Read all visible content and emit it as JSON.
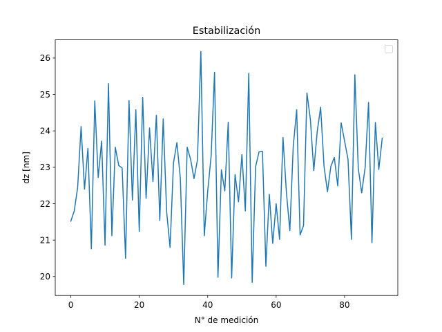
{
  "chart_data": {
    "type": "line",
    "title": "Estabilización",
    "xlabel": "N° de medición",
    "ylabel": "dz [nm]",
    "xlim": [
      -4.55,
      95.55
    ],
    "ylim": [
      19.48,
      26.5
    ],
    "xticks": [
      0,
      20,
      40,
      60,
      80
    ],
    "yticks": [
      20,
      21,
      22,
      23,
      24,
      25,
      26
    ],
    "grid": false,
    "legend": {
      "placement": "top-right",
      "entries": []
    },
    "series": [
      {
        "color": "#1f77b4",
        "x": [
          0,
          1,
          2,
          3,
          4,
          5,
          6,
          7,
          8,
          9,
          10,
          11,
          12,
          13,
          14,
          15,
          16,
          17,
          18,
          19,
          20,
          21,
          22,
          23,
          24,
          25,
          26,
          27,
          28,
          29,
          30,
          31,
          32,
          33,
          34,
          35,
          36,
          37,
          38,
          39,
          40,
          41,
          42,
          43,
          44,
          45,
          46,
          47,
          48,
          49,
          50,
          51,
          52,
          53,
          54,
          55,
          56,
          57,
          58,
          59,
          60,
          61,
          62,
          63,
          64,
          65,
          66,
          67,
          68,
          69,
          70,
          71,
          72,
          73,
          74,
          75,
          76,
          77,
          78,
          79,
          80,
          81,
          82,
          83,
          84,
          85,
          86,
          87,
          88,
          89,
          90,
          91
        ],
        "values": [
          21.52,
          21.8,
          22.45,
          24.12,
          22.4,
          23.52,
          20.76,
          24.82,
          22.72,
          23.72,
          20.86,
          25.3,
          21.12,
          23.55,
          23.05,
          22.98,
          20.5,
          24.83,
          22.1,
          24.58,
          21.24,
          24.92,
          22.15,
          24.08,
          22.61,
          24.43,
          21.54,
          24.33,
          21.78,
          20.8,
          23.12,
          23.68,
          22.7,
          19.78,
          23.55,
          23.22,
          22.69,
          23.2,
          26.18,
          21.12,
          22.34,
          23.31,
          25.61,
          19.98,
          22.93,
          22.35,
          24.24,
          19.96,
          22.8,
          22.05,
          23.35,
          21.8,
          25.58,
          19.84,
          23.02,
          23.42,
          23.44,
          20.28,
          22.26,
          20.91,
          22.0,
          21.02,
          23.82,
          22.31,
          21.26,
          23.58,
          24.58,
          21.14,
          21.4,
          25.04,
          24.32,
          22.91,
          23.98,
          24.65,
          23.02,
          22.33,
          23.03,
          23.27,
          22.49,
          24.22,
          23.72,
          23.22,
          21.02,
          25.54,
          22.97,
          22.3,
          22.99,
          24.78,
          20.93,
          24.23,
          22.94,
          23.8
        ]
      }
    ]
  }
}
